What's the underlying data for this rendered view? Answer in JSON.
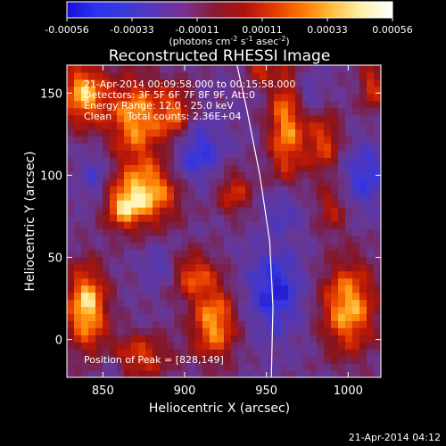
{
  "chart_data": {
    "type": "heatmap",
    "title": "Reconstructed RHESSI Image",
    "xlabel": "Heliocentric X (arcsec)",
    "ylabel": "Heliocentric Y (arcsec)",
    "xlim": [
      828,
      1020
    ],
    "ylim": [
      -23,
      167
    ],
    "x_ticks": [
      850,
      900,
      950,
      1000
    ],
    "y_ticks": [
      0,
      50,
      100,
      150
    ],
    "colorbar": {
      "ticks": [
        "-0.00056",
        "-0.00033",
        "-0.00011",
        "0.00011",
        "0.00033",
        "0.00056"
      ],
      "unit_text": "(photons cm",
      "unit_sup1": "-2",
      "unit_mid": " s",
      "unit_sup2": "-1",
      "unit_mid2": " asec",
      "unit_sup3": "-2",
      "unit_end": ")",
      "stops": [
        "#1a0ddc",
        "#2a34f0",
        "#3b3bd8",
        "#5a36b8",
        "#7a3090",
        "#8a1a30",
        "#b01010",
        "#e23c00",
        "#ff7a00",
        "#ffc040",
        "#fff2b0",
        "#ffffff"
      ]
    },
    "info_lines": [
      "21-Apr-2014 00:09:58.000 to 00:15:58.000",
      "Detectors: 3F 5F 6F 7F 8F 9F, Att:0",
      "Energy Range: 12.0 - 25.0 keV",
      "Clean     Total counts: 2.36E+04"
    ],
    "peak_label": "Position of Peak = [828,149]",
    "limb_curve": [
      [
        953,
        -23
      ],
      [
        954,
        20
      ],
      [
        952,
        60
      ],
      [
        946,
        100
      ],
      [
        938,
        140
      ],
      [
        932,
        167
      ]
    ],
    "blobs": [
      {
        "x": 840,
        "y": 20,
        "sx": 9,
        "sy": 18,
        "a": 1.0
      },
      {
        "x": 838,
        "y": 150,
        "sx": 10,
        "sy": 14,
        "a": 0.9
      },
      {
        "x": 870,
        "y": 135,
        "sx": 12,
        "sy": 18,
        "a": 0.85
      },
      {
        "x": 878,
        "y": 90,
        "sx": 14,
        "sy": 14,
        "a": 0.9
      },
      {
        "x": 862,
        "y": 80,
        "sx": 8,
        "sy": 10,
        "a": 0.6
      },
      {
        "x": 895,
        "y": 135,
        "sx": 8,
        "sy": 14,
        "a": 0.7
      },
      {
        "x": 905,
        "y": 40,
        "sx": 10,
        "sy": 10,
        "a": 0.6
      },
      {
        "x": 918,
        "y": 10,
        "sx": 10,
        "sy": 16,
        "a": 0.85
      },
      {
        "x": 872,
        "y": -10,
        "sx": 14,
        "sy": 10,
        "a": 0.6
      },
      {
        "x": 930,
        "y": 90,
        "sx": 8,
        "sy": 10,
        "a": 0.55
      },
      {
        "x": 962,
        "y": 130,
        "sx": 8,
        "sy": 26,
        "a": 0.8
      },
      {
        "x": 1000,
        "y": 20,
        "sx": 12,
        "sy": 20,
        "a": 0.9
      },
      {
        "x": 985,
        "y": 120,
        "sx": 8,
        "sy": 14,
        "a": 0.6
      },
      {
        "x": 990,
        "y": 80,
        "sx": 7,
        "sy": 10,
        "a": 0.45
      },
      {
        "x": 1015,
        "y": 155,
        "sx": 6,
        "sy": 12,
        "a": 0.55
      },
      {
        "x": 945,
        "y": 165,
        "sx": 6,
        "sy": 6,
        "a": 0.5
      }
    ],
    "holes": [
      {
        "x": 905,
        "y": 115,
        "sx": 12,
        "sy": 14,
        "a": 1.0
      },
      {
        "x": 955,
        "y": 30,
        "sx": 12,
        "sy": 18,
        "a": 1.0
      },
      {
        "x": 1010,
        "y": 100,
        "sx": 10,
        "sy": 14,
        "a": 0.8
      },
      {
        "x": 960,
        "y": 80,
        "sx": 8,
        "sy": 10,
        "a": 0.7
      },
      {
        "x": 845,
        "y": 100,
        "sx": 6,
        "sy": 10,
        "a": 0.6
      },
      {
        "x": 975,
        "y": 150,
        "sx": 6,
        "sy": 8,
        "a": 0.6
      },
      {
        "x": 885,
        "y": 45,
        "sx": 7,
        "sy": 8,
        "a": 0.6
      },
      {
        "x": 855,
        "y": -15,
        "sx": 6,
        "sy": 6,
        "a": 0.5
      }
    ],
    "grid": false
  },
  "footer_timestamp": "21-Apr-2014 04:12"
}
